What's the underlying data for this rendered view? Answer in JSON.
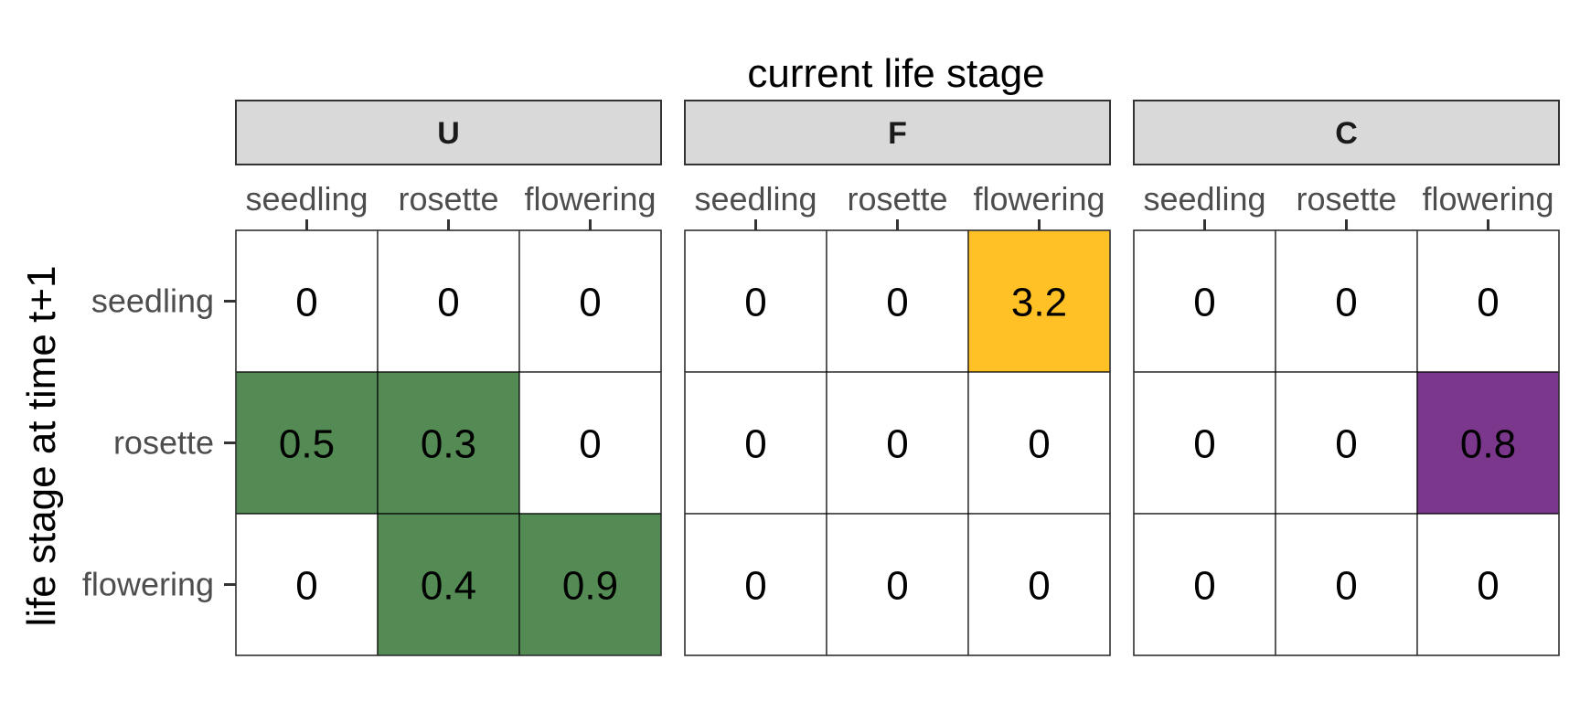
{
  "chart_data": {
    "type": "heatmap",
    "x_title": "current life stage",
    "y_title": "life stage at time t+1",
    "stages": [
      "seedling",
      "rosette",
      "flowering"
    ],
    "facets": [
      {
        "name": "U",
        "color": "#548b54",
        "values": [
          [
            0,
            0,
            0
          ],
          [
            0.5,
            0.3,
            0
          ],
          [
            0,
            0.4,
            0.9
          ]
        ]
      },
      {
        "name": "F",
        "color": "#ffc125",
        "values": [
          [
            0,
            0,
            3.2
          ],
          [
            0,
            0,
            0
          ],
          [
            0,
            0,
            0
          ]
        ]
      },
      {
        "name": "C",
        "color": "#7a378b",
        "values": [
          [
            0,
            0,
            0
          ],
          [
            0,
            0,
            0.8
          ],
          [
            0,
            0,
            0
          ]
        ]
      }
    ],
    "strip_fill": "#d9d9d9",
    "cell_fill_zero": "#ffffff",
    "legend": "none",
    "grid": false
  }
}
